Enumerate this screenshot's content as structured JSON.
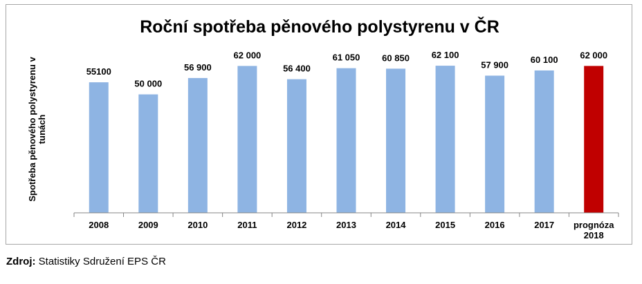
{
  "chart_data": {
    "type": "bar",
    "title": "Roční spotřeba pěnového polystyrenu v ČR",
    "ylabel": [
      "Spotřeba pěnového polystyrenu v",
      "tunách"
    ],
    "xlabel": "",
    "categories": [
      [
        "2008"
      ],
      [
        "2009"
      ],
      [
        "2010"
      ],
      [
        "2011"
      ],
      [
        "2012"
      ],
      [
        "2013"
      ],
      [
        "2014"
      ],
      [
        "2015"
      ],
      [
        "2016"
      ],
      [
        "2017"
      ],
      [
        "prognóza",
        "2018"
      ]
    ],
    "values": [
      55100,
      50000,
      56900,
      62000,
      56400,
      61050,
      60850,
      62100,
      57900,
      60100,
      62000
    ],
    "data_labels": [
      "55100",
      "50 000",
      "56 900",
      "62 000",
      "56 400",
      "61 050",
      "60 850",
      "62 100",
      "57 900",
      "60 100",
      "62 000"
    ],
    "ylim": [
      0,
      70000
    ],
    "grid": false,
    "legend": "none",
    "colors": {
      "bar": "#8eb4e3",
      "highlight_bar": "#c00000",
      "axis": "#868686"
    },
    "highlight_index": 10
  },
  "source": {
    "label": "Zdroj:",
    "text": " Statistiky Sdružení EPS ČR"
  }
}
